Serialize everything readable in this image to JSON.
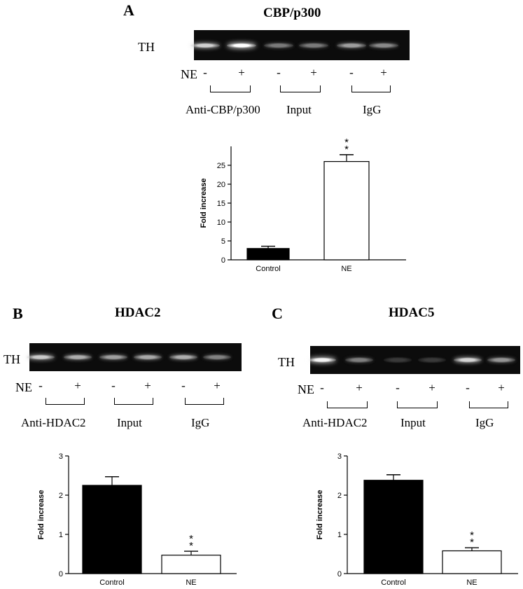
{
  "panels": [
    {
      "id": "A",
      "letter": "A",
      "gel_title": "CBP/p300",
      "row_label": "TH",
      "ne_label": "NE",
      "signs": [
        "-",
        "+",
        "-",
        "+",
        "-",
        "+"
      ],
      "groups": [
        "Anti-CBP/p300",
        "Input",
        "IgG"
      ],
      "band_intensity": [
        0.78,
        1.0,
        0.38,
        0.38,
        0.55,
        0.45
      ]
    },
    {
      "id": "B",
      "letter": "B",
      "gel_title": "HDAC2",
      "row_label": "TH",
      "ne_label": "NE",
      "signs": [
        "-",
        "+",
        "-",
        "+",
        "-",
        "+"
      ],
      "groups": [
        "Anti-HDAC2",
        "Input",
        "IgG"
      ],
      "band_intensity": [
        0.75,
        0.62,
        0.55,
        0.6,
        0.62,
        0.42
      ]
    },
    {
      "id": "C",
      "letter": "C",
      "gel_title": "HDAC5",
      "row_label": "TH",
      "ne_label": "NE",
      "signs": [
        "-",
        "+",
        "-",
        "+",
        "-",
        "+"
      ],
      "groups": [
        "Anti-HDAC2",
        "Input",
        "IgG"
      ],
      "band_intensity": [
        0.95,
        0.4,
        0.08,
        0.08,
        0.8,
        0.5
      ]
    }
  ],
  "chart_data": [
    {
      "panel": "A",
      "type": "bar",
      "categories": [
        "Control",
        "NE"
      ],
      "values": [
        3,
        26
      ],
      "errors": [
        0.6,
        1.8
      ],
      "bar_colors": [
        "#000000",
        "#ffffff"
      ],
      "ylabel": "Fold increase",
      "ylim": [
        0,
        30
      ],
      "yticks": [
        "0",
        "5",
        "10",
        "15",
        "20",
        "25"
      ],
      "significance": [
        "",
        "**"
      ]
    },
    {
      "panel": "B",
      "type": "bar",
      "categories": [
        "Control",
        "NE"
      ],
      "values": [
        2.25,
        0.47
      ],
      "errors": [
        0.22,
        0.1
      ],
      "bar_colors": [
        "#000000",
        "#ffffff"
      ],
      "ylabel": "Fold increase",
      "ylim": [
        0,
        3
      ],
      "yticks": [
        "0",
        "1",
        "2",
        "3"
      ],
      "significance": [
        "",
        "**"
      ]
    },
    {
      "panel": "C",
      "type": "bar",
      "categories": [
        "Control",
        "NE"
      ],
      "values": [
        2.38,
        0.58
      ],
      "errors": [
        0.14,
        0.08
      ],
      "bar_colors": [
        "#000000",
        "#ffffff"
      ],
      "ylabel": "Fold increase",
      "ylim": [
        0,
        3
      ],
      "yticks": [
        "0",
        "1",
        "2",
        "3"
      ],
      "significance": [
        "",
        "**"
      ]
    }
  ]
}
